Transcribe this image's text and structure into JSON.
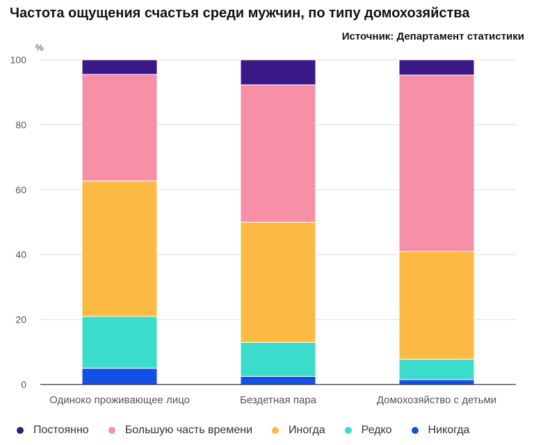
{
  "chart_data": {
    "type": "bar",
    "stacked": true,
    "title": "Частота ощущения счастья среди мужчин, по типу домохозяйства",
    "source": "Источник: Департамент статистики",
    "ylabel": "%",
    "ylim": [
      0,
      100
    ],
    "yticks": [
      0,
      20,
      40,
      60,
      80,
      100
    ],
    "grid": true,
    "legend_position": "bottom",
    "categories": [
      "Одиноко проживающее лицо",
      "Бездетная пара",
      "Домохозяйство с детьми"
    ],
    "series": [
      {
        "name": "Никогда",
        "color": "#1450e6",
        "values": [
          5,
          2.5,
          1.5
        ]
      },
      {
        "name": "Редко",
        "color": "#3cdccc",
        "values": [
          16,
          10.5,
          6.3
        ]
      },
      {
        "name": "Иногда",
        "color": "#fcba45",
        "values": [
          41.7,
          37,
          33.2
        ]
      },
      {
        "name": "Большую часть времени",
        "color": "#f78fa7",
        "values": [
          32.8,
          42.3,
          54.3
        ]
      },
      {
        "name": "Постоянно",
        "color": "#3b1a87",
        "values": [
          4.5,
          7.7,
          4.7
        ]
      }
    ],
    "legend_order": [
      "Постоянно",
      "Большую часть времени",
      "Иногда",
      "Редко",
      "Никогда"
    ]
  }
}
